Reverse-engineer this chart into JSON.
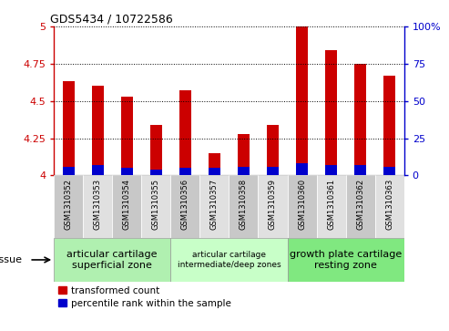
{
  "title": "GDS5434 / 10722586",
  "samples": [
    "GSM1310352",
    "GSM1310353",
    "GSM1310354",
    "GSM1310355",
    "GSM1310356",
    "GSM1310357",
    "GSM1310358",
    "GSM1310359",
    "GSM1310360",
    "GSM1310361",
    "GSM1310362",
    "GSM1310363"
  ],
  "red_values": [
    4.63,
    4.6,
    4.53,
    4.34,
    4.57,
    4.15,
    4.28,
    4.34,
    5.0,
    4.84,
    4.75,
    4.67
  ],
  "blue_values": [
    4.06,
    4.07,
    4.05,
    4.04,
    4.05,
    4.05,
    4.06,
    4.06,
    4.08,
    4.07,
    4.07,
    4.06
  ],
  "y_min": 4.0,
  "y_max": 5.0,
  "y_ticks": [
    4.0,
    4.25,
    4.5,
    4.75,
    5.0
  ],
  "y_tick_labels": [
    "4",
    "4.25",
    "4.5",
    "4.75",
    "5"
  ],
  "right_y_ticks": [
    0,
    25,
    50,
    75,
    100
  ],
  "right_y_tick_labels": [
    "0",
    "25",
    "50",
    "75",
    "100%"
  ],
  "red_color": "#cc0000",
  "blue_color": "#0000cc",
  "col_color_odd": "#c8c8c8",
  "col_color_even": "#e0e0e0",
  "tissue_groups": [
    {
      "label": "articular cartilage\nsuperficial zone",
      "start": 0,
      "end": 3,
      "color": "#b0f0b0",
      "fontsize": 8
    },
    {
      "label": "articular cartilage\nintermediate/deep zones",
      "start": 4,
      "end": 7,
      "color": "#c8ffc8",
      "fontsize": 6.5
    },
    {
      "label": "growth plate cartilage\nresting zone",
      "start": 8,
      "end": 11,
      "color": "#80e880",
      "fontsize": 8
    }
  ],
  "legend_red": "transformed count",
  "legend_blue": "percentile rank within the sample",
  "tissue_label": "tissue",
  "bar_width": 0.4
}
